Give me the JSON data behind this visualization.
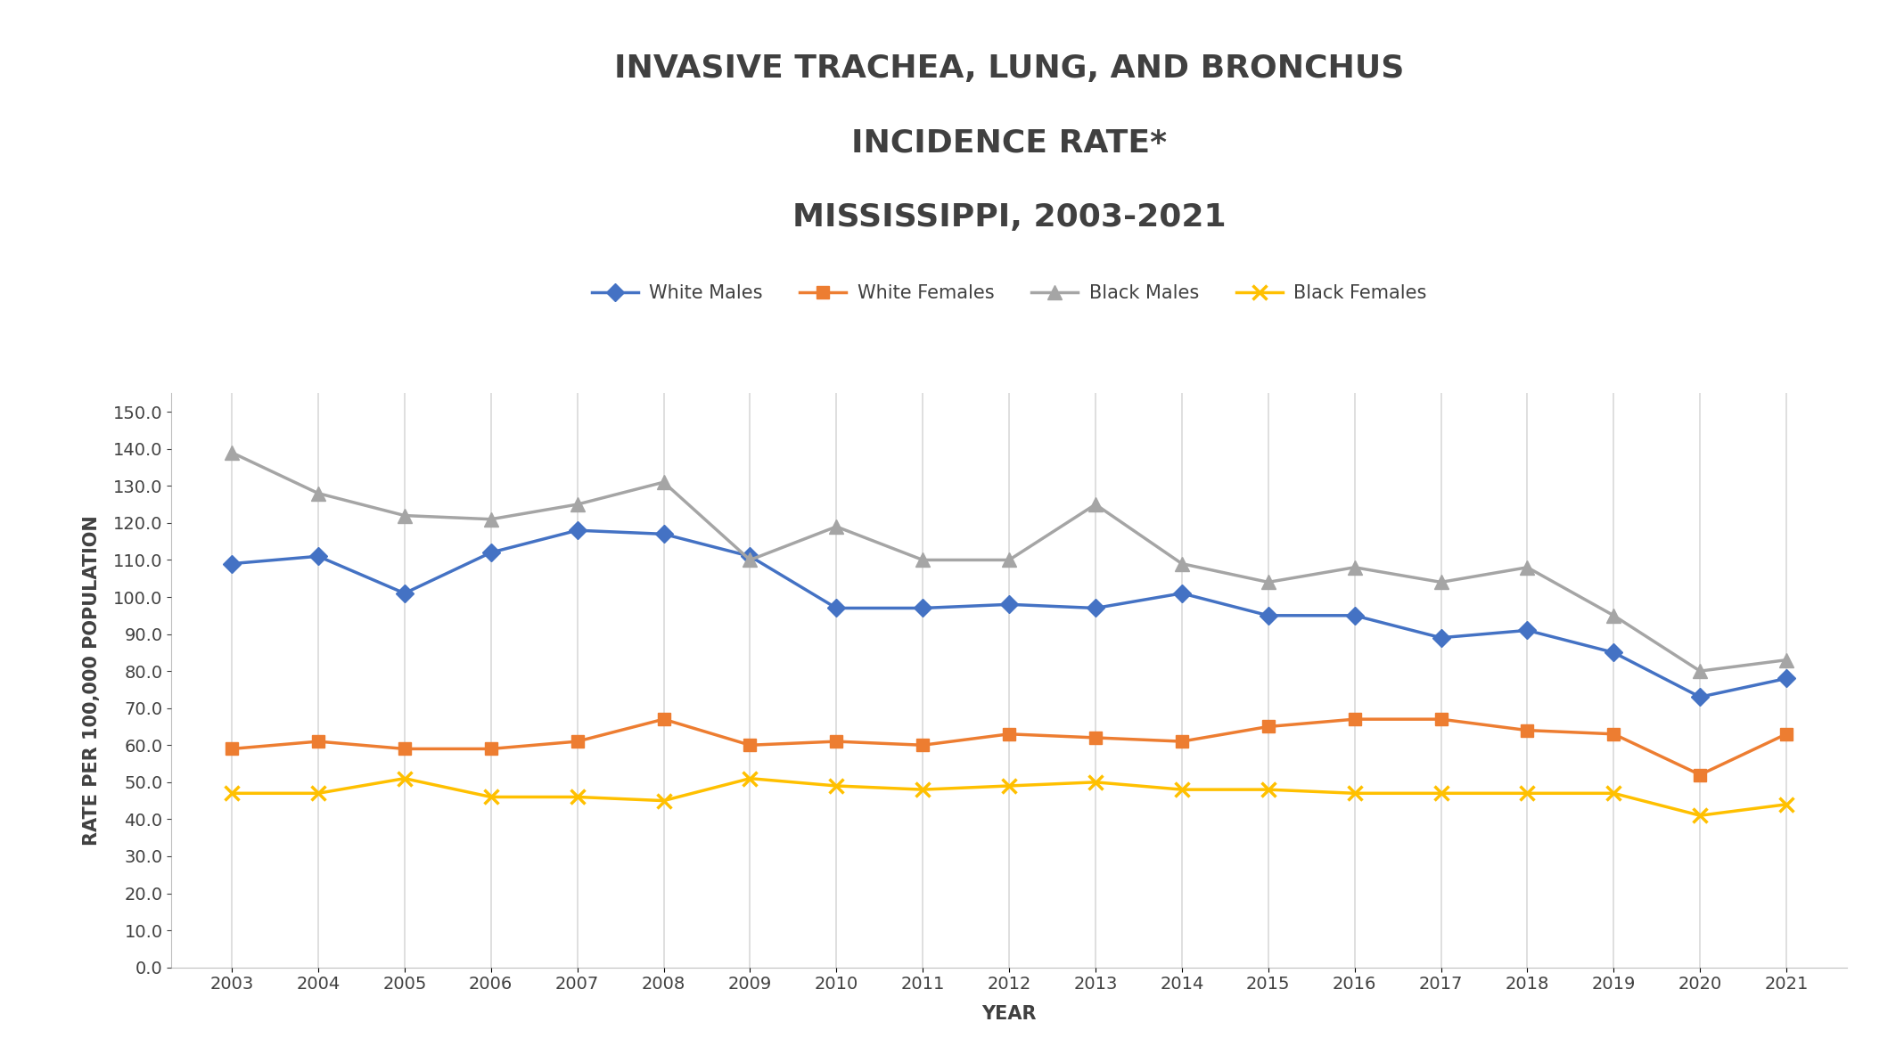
{
  "title_line1": "INVASIVE TRACHEA, LUNG, AND BRONCHUS",
  "title_line2": "INCIDENCE RATE*",
  "title_line3": "MISSISSIPPI, 2003-2021",
  "xlabel": "YEAR",
  "ylabel": "RATE PER 100,000 POPULATION",
  "years": [
    2003,
    2004,
    2005,
    2006,
    2007,
    2008,
    2009,
    2010,
    2011,
    2012,
    2013,
    2014,
    2015,
    2016,
    2017,
    2018,
    2019,
    2020,
    2021
  ],
  "white_males": [
    109.0,
    111.0,
    101.0,
    112.0,
    118.0,
    117.0,
    111.0,
    97.0,
    97.0,
    98.0,
    97.0,
    101.0,
    95.0,
    95.0,
    89.0,
    91.0,
    85.0,
    73.0,
    78.0
  ],
  "white_females": [
    59.0,
    61.0,
    59.0,
    59.0,
    61.0,
    67.0,
    60.0,
    61.0,
    60.0,
    63.0,
    62.0,
    61.0,
    65.0,
    67.0,
    67.0,
    64.0,
    63.0,
    52.0,
    63.0
  ],
  "black_males": [
    139.0,
    128.0,
    122.0,
    121.0,
    125.0,
    131.0,
    110.0,
    119.0,
    110.0,
    110.0,
    125.0,
    109.0,
    104.0,
    108.0,
    104.0,
    108.0,
    95.0,
    80.0,
    83.0
  ],
  "black_females": [
    47.0,
    47.0,
    51.0,
    46.0,
    46.0,
    45.0,
    51.0,
    49.0,
    48.0,
    49.0,
    50.0,
    48.0,
    48.0,
    47.0,
    47.0,
    47.0,
    47.0,
    41.0,
    44.0
  ],
  "color_white_males": "#4472C4",
  "color_white_females": "#ED7D31",
  "color_black_males": "#A5A5A5",
  "color_black_females": "#FFC000",
  "title_color": "#404040",
  "axis_label_color": "#404040",
  "tick_color": "#404040",
  "ylim": [
    0.0,
    155.0
  ],
  "yticks": [
    0.0,
    10.0,
    20.0,
    30.0,
    40.0,
    50.0,
    60.0,
    70.0,
    80.0,
    90.0,
    100.0,
    110.0,
    120.0,
    130.0,
    140.0,
    150.0
  ],
  "background_color": "#FFFFFF",
  "plot_bg_color": "#FFFFFF",
  "grid_color": "#D9D9D9",
  "title_fontsize": 26,
  "axis_label_fontsize": 15,
  "tick_fontsize": 14,
  "legend_fontsize": 15,
  "legend_entries": [
    "White Males",
    "White Females",
    "Black Males",
    "Black Females"
  ],
  "linewidth": 2.5,
  "markersize": 10
}
